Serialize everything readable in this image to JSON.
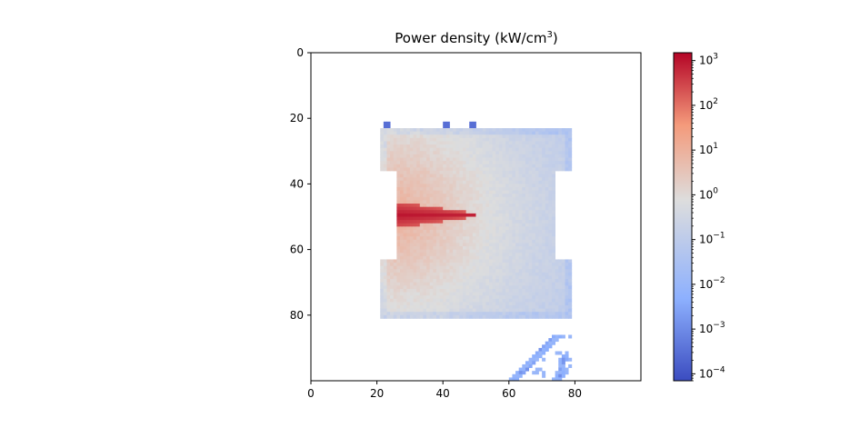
{
  "chart_data": {
    "type": "heatmap",
    "title": "Power density (kW/cm",
    "title_superscript": "3",
    "title_suffix": ")",
    "xlim": [
      0,
      100
    ],
    "ylim": [
      100,
      0
    ],
    "grid_shape": [
      100,
      100
    ],
    "x_ticks": [
      "0",
      "20",
      "40",
      "60",
      "80"
    ],
    "y_ticks": [
      "0",
      "20",
      "40",
      "60",
      "80"
    ],
    "colorbar": {
      "scale": "log",
      "range": [
        7e-05,
        1500
      ],
      "colormap": "coolwarm",
      "ticks": [
        {
          "base": "10",
          "exp": "3"
        },
        {
          "base": "10",
          "exp": "2"
        },
        {
          "base": "10",
          "exp": "1"
        },
        {
          "base": "10",
          "exp": "0"
        },
        {
          "base": "10",
          "exp": "−1"
        },
        {
          "base": "10",
          "exp": "−2"
        },
        {
          "base": "10",
          "exp": "−3"
        },
        {
          "base": "10",
          "exp": "−4"
        }
      ],
      "colors": [
        "#3b4cc0",
        "#8db0fe",
        "#dddddd",
        "#f49a7b",
        "#b40426"
      ]
    },
    "structure": {
      "body": {
        "x": [
          21,
          79
        ],
        "y": [
          23,
          81
        ]
      },
      "notches": [
        {
          "x": [
            21,
            26
          ],
          "y": [
            36,
            63
          ]
        },
        {
          "x": [
            74,
            79
          ],
          "y": [
            36,
            63
          ]
        }
      ],
      "beam": {
        "x_start": 25,
        "x_end": 50,
        "y_center": 49.5,
        "half_width_start": 3.5,
        "peak_value": 1000
      }
    }
  }
}
